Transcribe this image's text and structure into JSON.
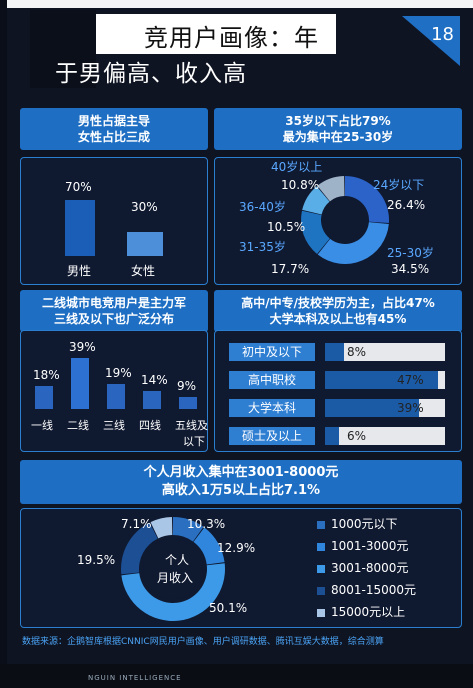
{
  "header": {
    "title": "竞用户画像：年",
    "subtitle": "于男偏高、收入高",
    "page_number": "18"
  },
  "gender": {
    "heading_line1": "男性占据主导",
    "heading_line2": "女性占比三成",
    "male_pct": "70%",
    "female_pct": "30%",
    "male_label": "男性",
    "female_label": "女性",
    "male_value": 70,
    "female_value": 30
  },
  "age": {
    "heading_line1": "35岁以下占比79%",
    "heading_line2": "最为集中在25-30岁",
    "segments": [
      {
        "label": "24岁以下",
        "pct": "26.4%",
        "value": 26.4,
        "color": "#2b63c9"
      },
      {
        "label": "25-30岁",
        "pct": "34.5%",
        "value": 34.5,
        "color": "#3a8ee6"
      },
      {
        "label": "31-35岁",
        "pct": "17.7%",
        "value": 17.7,
        "color": "#1f74c2"
      },
      {
        "label": "36-40岁",
        "pct": "10.5%",
        "value": 10.5,
        "color": "#5aaee8"
      },
      {
        "label": "40岁以上",
        "pct": "10.8%",
        "value": 10.8,
        "color": "#9fb3c8"
      }
    ]
  },
  "city": {
    "heading_line1": "二线城市电竞用户是主力军",
    "heading_line2": "三线及以下也广泛分布",
    "bars": [
      {
        "label": "一线",
        "pct": "18%",
        "value": 18
      },
      {
        "label": "二线",
        "pct": "39%",
        "value": 39
      },
      {
        "label": "三线",
        "pct": "19%",
        "value": 19
      },
      {
        "label": "四线",
        "pct": "14%",
        "value": 14
      },
      {
        "label": "五线及",
        "label2": "以下",
        "pct": "9%",
        "value": 9
      }
    ]
  },
  "education": {
    "heading_line1": "高中/中专/技校学历为主，占比47%",
    "heading_line2": "大学本科及以上也有45%",
    "rows": [
      {
        "label": "初中及以下",
        "pct": "8%",
        "value": 8
      },
      {
        "label": "高中职校",
        "pct": "47%",
        "value": 47
      },
      {
        "label": "大学本科",
        "pct": "39%",
        "value": 39
      },
      {
        "label": "硕士及以上",
        "pct": "6%",
        "value": 6
      }
    ]
  },
  "income": {
    "heading_line1": "个人月收入集中在3001-8000元",
    "heading_line2": "高收入1万5以上占比7.1%",
    "center_line1": "个人",
    "center_line2": "月收入",
    "segments": [
      {
        "label": "1000元以下",
        "pct": "10.3%",
        "value": 10.3,
        "color": "#2a6fc0"
      },
      {
        "label": "1001-3000元",
        "pct": "12.9%",
        "value": 12.9,
        "color": "#2f86dc"
      },
      {
        "label": "3001-8000元",
        "pct": "50.1%",
        "value": 50.1,
        "color": "#3d9ae8"
      },
      {
        "label": "8001-15000元",
        "pct": "19.5%",
        "value": 19.5,
        "color": "#1c4f94"
      },
      {
        "label": "15000元以上",
        "pct": "7.1%",
        "value": 7.1,
        "color": "#a9c6e6"
      }
    ]
  },
  "footer": {
    "source": "数据来源：企鹅智库根据CNNIC网民用户画像、用户调研数据、腾讯互娱大数据，综合测算",
    "logo_text": "NGUIN INTELLIGENCE"
  }
}
